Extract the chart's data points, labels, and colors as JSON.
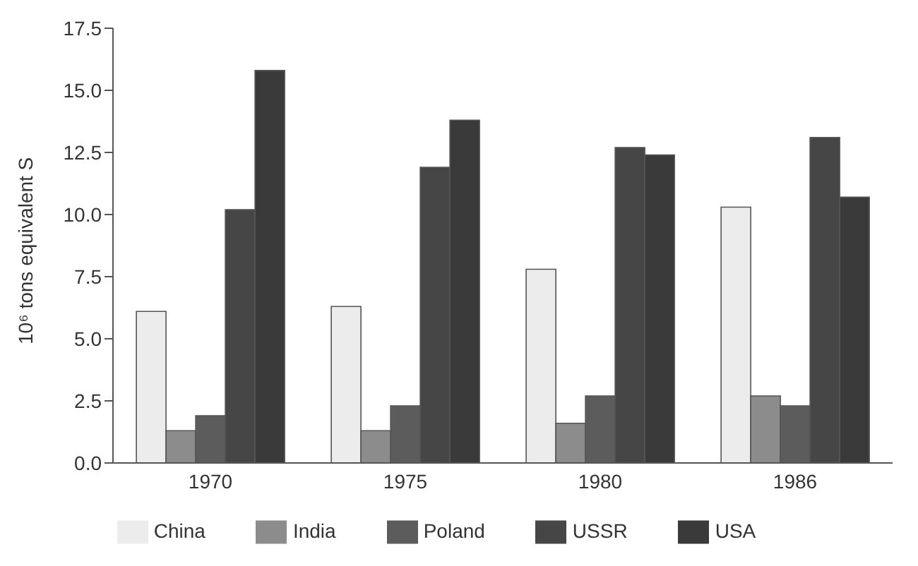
{
  "chart_data": {
    "type": "bar",
    "ylabel": "10⁶ tons equivalent S",
    "categories": [
      "1970",
      "1975",
      "1980",
      "1986"
    ],
    "series": [
      {
        "name": "China",
        "color": "#ececec",
        "values": [
          6.1,
          6.3,
          7.8,
          10.3
        ]
      },
      {
        "name": "India",
        "color": "#8c8c8c",
        "values": [
          1.3,
          1.3,
          1.6,
          2.7
        ]
      },
      {
        "name": "Poland",
        "color": "#5c5c5c",
        "values": [
          1.9,
          2.3,
          2.7,
          2.3
        ]
      },
      {
        "name": "USSR",
        "color": "#464646",
        "values": [
          10.2,
          11.9,
          12.7,
          13.1
        ]
      },
      {
        "name": "USA",
        "color": "#3a3a3a",
        "values": [
          15.8,
          13.8,
          12.4,
          10.7
        ]
      }
    ],
    "ylim": [
      0,
      17.5
    ],
    "yticks": [
      {
        "value": 0,
        "label": "0.0"
      },
      {
        "value": 2.5,
        "label": "2.5"
      },
      {
        "value": 5,
        "label": "5.0"
      },
      {
        "value": 7.5,
        "label": "7.5"
      },
      {
        "value": 10,
        "label": "10.0"
      },
      {
        "value": 12.5,
        "label": "12.5"
      },
      {
        "value": 15,
        "label": "15.0"
      },
      {
        "value": 17.5,
        "label": "17.5"
      }
    ],
    "grid": false,
    "legend": "bottom"
  }
}
